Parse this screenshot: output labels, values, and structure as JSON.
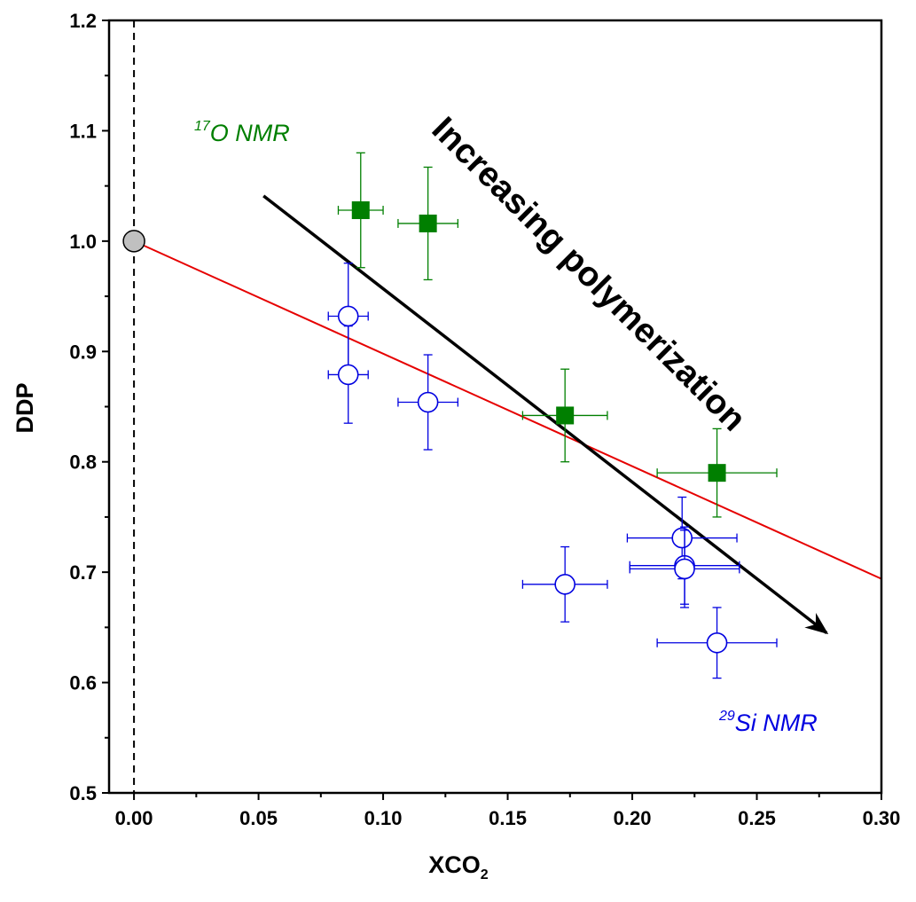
{
  "colors": {
    "o17": "#007f00",
    "si29": "#0000e0",
    "fit": "#e60000",
    "reference": "#c0c0c0",
    "arrow": "#000000"
  },
  "chart_data": {
    "type": "scatter",
    "xlabel_main": "XCO",
    "xlabel_sub": "2",
    "ylabel": "DDP",
    "xlim": [
      -0.01,
      0.3
    ],
    "ylim": [
      0.5,
      1.2
    ],
    "xticks": [
      "0.00",
      "0.05",
      "0.10",
      "0.15",
      "0.20",
      "0.25",
      "0.30"
    ],
    "yticks": [
      "0.5",
      "0.6",
      "0.7",
      "0.8",
      "0.9",
      "1.0",
      "1.1",
      "1.2"
    ],
    "grid": false,
    "series": [
      {
        "label_sup": "17",
        "label_text": "O NMR",
        "marker": "filled-square",
        "points": [
          {
            "x": 0.091,
            "y": 1.028,
            "xerr": 0.009,
            "yerr": 0.052
          },
          {
            "x": 0.118,
            "y": 1.016,
            "xerr": 0.012,
            "yerr": 0.051
          },
          {
            "x": 0.173,
            "y": 0.842,
            "xerr": 0.017,
            "yerr": 0.042
          },
          {
            "x": 0.234,
            "y": 0.79,
            "xerr": 0.024,
            "yerr": 0.04
          }
        ]
      },
      {
        "label_sup": "29",
        "label_text": "Si NMR",
        "marker": "open-circle",
        "points": [
          {
            "x": 0.086,
            "y": 0.932,
            "xerr": 0.008,
            "yerr": 0.048
          },
          {
            "x": 0.086,
            "y": 0.879,
            "xerr": 0.008,
            "yerr": 0.044
          },
          {
            "x": 0.118,
            "y": 0.854,
            "xerr": 0.012,
            "yerr": 0.043
          },
          {
            "x": 0.173,
            "y": 0.689,
            "xerr": 0.017,
            "yerr": 0.034
          },
          {
            "x": 0.22,
            "y": 0.731,
            "xerr": 0.022,
            "yerr": 0.037
          },
          {
            "x": 0.221,
            "y": 0.706,
            "xerr": 0.022,
            "yerr": 0.035
          },
          {
            "x": 0.221,
            "y": 0.703,
            "xerr": 0.022,
            "yerr": 0.035
          },
          {
            "x": 0.234,
            "y": 0.636,
            "xerr": 0.024,
            "yerr": 0.032
          }
        ]
      }
    ],
    "reference_point": {
      "x": 0.0,
      "y": 1.0
    },
    "reference_line_x": 0.0,
    "fit_line": {
      "x1": 0.0,
      "y1": 1.0,
      "x2": 0.3,
      "y2": 0.694
    },
    "annotation": {
      "text": "Increasing polymerization",
      "arrow_from": [
        0.052,
        1.041
      ],
      "arrow_to": [
        0.278,
        0.645
      ]
    }
  }
}
